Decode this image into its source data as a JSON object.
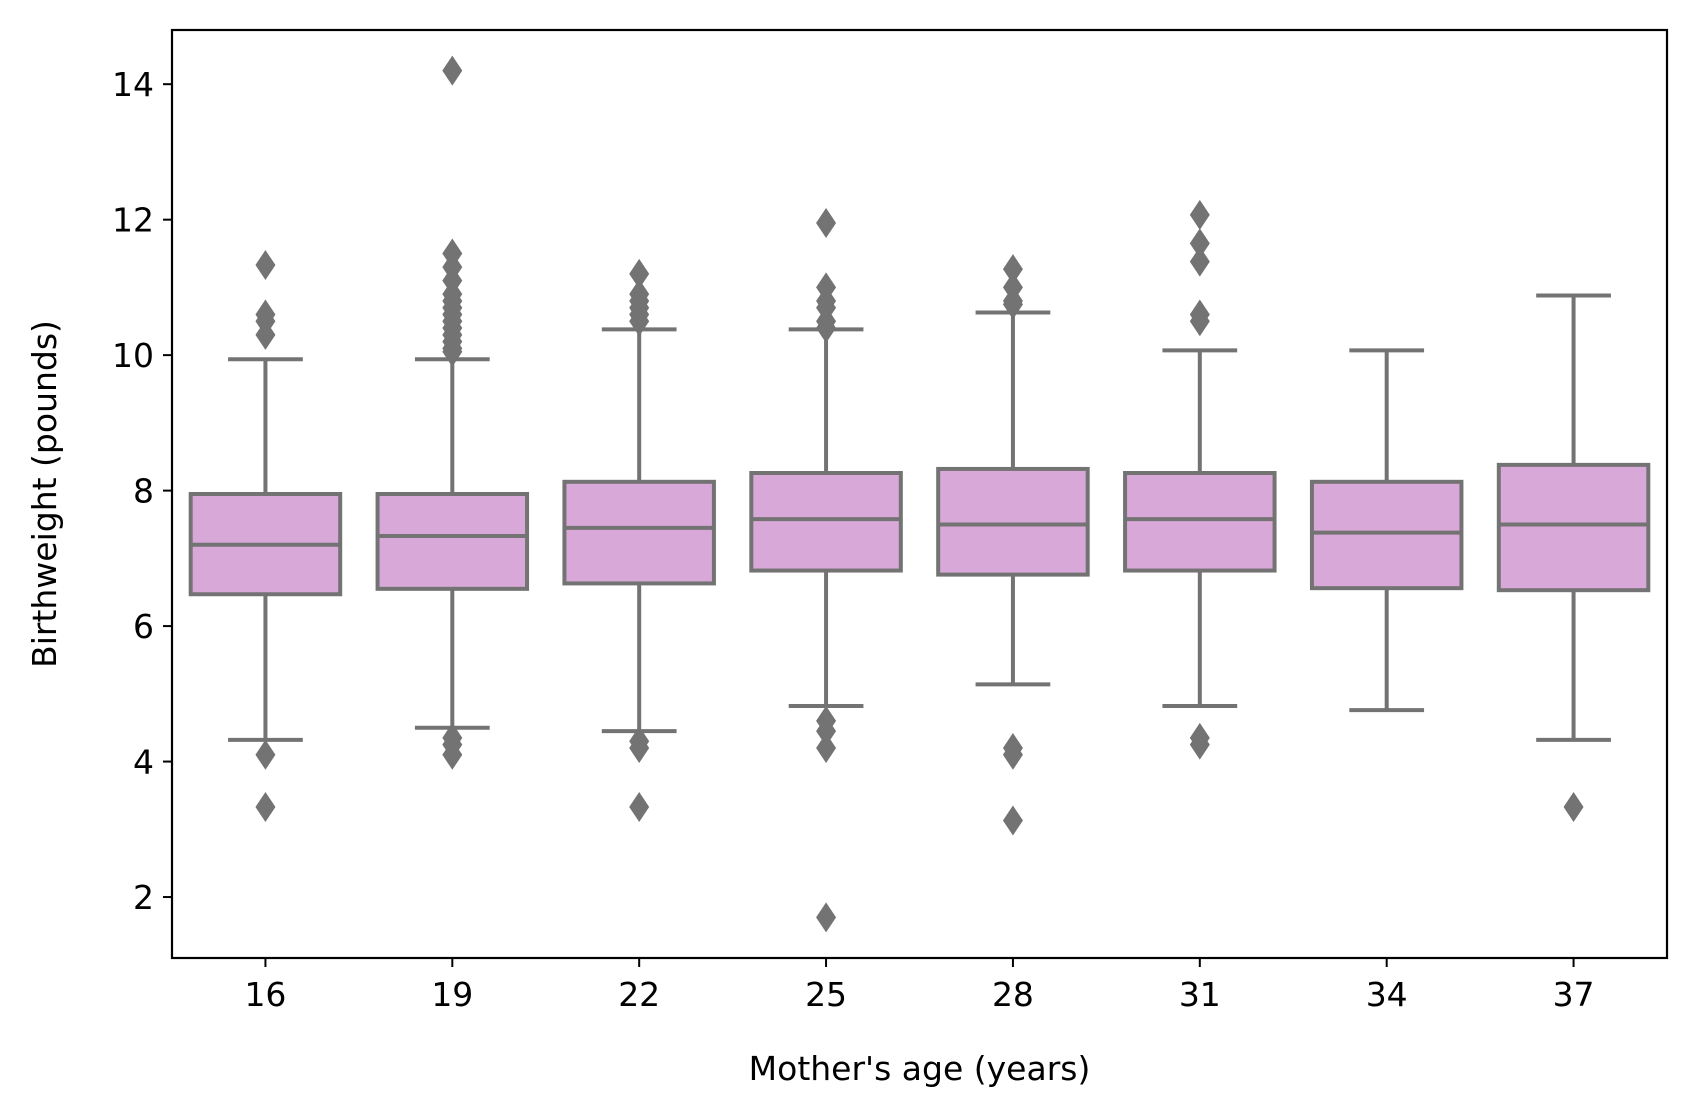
{
  "chart_data": {
    "type": "box",
    "xlabel": "Mother's age (years)",
    "ylabel": "Birthweight (pounds)",
    "ylim": [
      1.1,
      14.8
    ],
    "yticks": [
      2,
      4,
      6,
      8,
      10,
      12,
      14
    ],
    "grid": false,
    "legend": "none",
    "colors": {
      "box_fill": "#d8a8d8",
      "line": "#737373",
      "axis": "#000000"
    },
    "categories": [
      "16",
      "19",
      "22",
      "25",
      "28",
      "31",
      "34",
      "37"
    ],
    "boxes": [
      {
        "category": "16",
        "whisker_low": 4.32,
        "q1": 6.47,
        "median": 7.2,
        "q3": 7.95,
        "whisker_high": 9.94,
        "outliers": [
          11.33,
          10.6,
          10.5,
          10.3,
          4.1,
          3.33
        ]
      },
      {
        "category": "19",
        "whisker_low": 4.5,
        "q1": 6.55,
        "median": 7.33,
        "q3": 7.95,
        "whisker_high": 9.94,
        "outliers": [
          14.2,
          11.5,
          11.3,
          11.1,
          10.9,
          10.8,
          10.7,
          10.6,
          10.5,
          10.4,
          10.3,
          10.2,
          10.1,
          10.05,
          4.35,
          4.25,
          4.1
        ]
      },
      {
        "category": "22",
        "whisker_low": 4.45,
        "q1": 6.63,
        "median": 7.45,
        "q3": 8.13,
        "whisker_high": 10.38,
        "outliers": [
          11.2,
          10.9,
          10.8,
          10.7,
          10.6,
          10.5,
          4.3,
          4.2,
          3.33
        ]
      },
      {
        "category": "25",
        "whisker_low": 4.82,
        "q1": 6.82,
        "median": 7.58,
        "q3": 8.26,
        "whisker_high": 10.38,
        "outliers": [
          11.95,
          11.0,
          10.8,
          10.7,
          10.5,
          10.4,
          4.6,
          4.45,
          4.2,
          1.7
        ]
      },
      {
        "category": "28",
        "whisker_low": 5.14,
        "q1": 6.76,
        "median": 7.5,
        "q3": 8.32,
        "whisker_high": 10.63,
        "outliers": [
          11.27,
          11.0,
          10.8,
          10.75,
          4.2,
          4.1,
          3.13
        ]
      },
      {
        "category": "31",
        "whisker_low": 4.82,
        "q1": 6.82,
        "median": 7.58,
        "q3": 8.26,
        "whisker_high": 10.07,
        "outliers": [
          12.07,
          11.65,
          11.38,
          10.6,
          10.5,
          4.35,
          4.25
        ]
      },
      {
        "category": "34",
        "whisker_low": 4.76,
        "q1": 6.56,
        "median": 7.38,
        "q3": 8.13,
        "whisker_high": 10.07,
        "outliers": []
      },
      {
        "category": "37",
        "whisker_low": 4.32,
        "q1": 6.53,
        "median": 7.5,
        "q3": 8.38,
        "whisker_high": 10.88,
        "outliers": [
          3.33
        ]
      }
    ]
  }
}
